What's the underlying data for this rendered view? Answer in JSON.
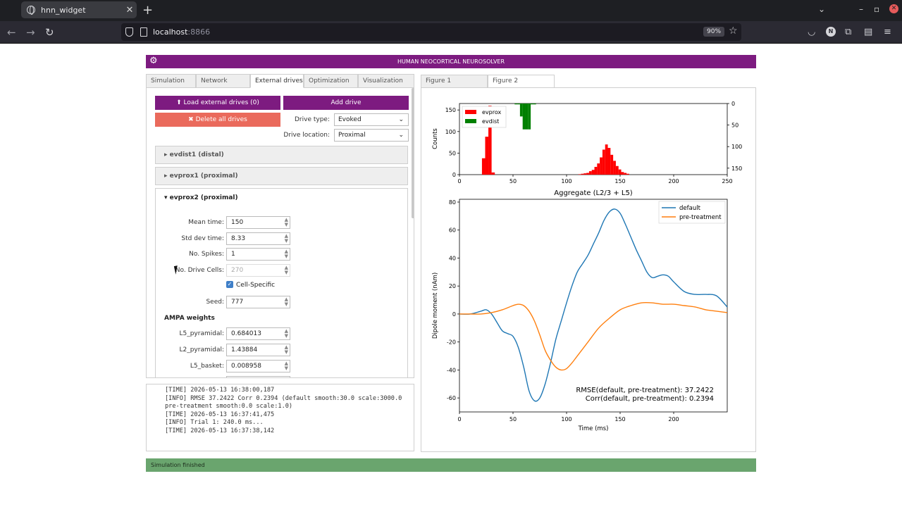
{
  "browser": {
    "tab_title": "hnn_widget",
    "url_host": "localhost",
    "url_port": ":8866",
    "zoom": "90%",
    "avatar_letter": "N"
  },
  "app": {
    "title": "HUMAN NEOCORTICAL NEUROSOLVER",
    "left_tabs": [
      "Simulation",
      "Network",
      "External drives",
      "Optimization",
      "Visualization"
    ],
    "active_left_tab": "External drives",
    "right_tabs": [
      "Figure 1",
      "Figure 2"
    ],
    "active_right_tab": "Figure 2",
    "status": "Simulation finished"
  },
  "drives": {
    "load_button": "Load external drives (0)",
    "add_button": "Add drive",
    "delete_button": "Delete all drives",
    "drive_type_label": "Drive type:",
    "drive_type_value": "Evoked",
    "drive_location_label": "Drive location:",
    "drive_location_value": "Proximal",
    "accordion": [
      "evdist1 (distal)",
      "evprox1 (proximal)",
      "evprox2 (proximal)"
    ],
    "fields": [
      {
        "label": "Mean time:",
        "value": "150"
      },
      {
        "label": "Std dev time:",
        "value": "8.33"
      },
      {
        "label": "No. Spikes:",
        "value": "1"
      },
      {
        "label": "No. Drive Cells:",
        "value": "270"
      }
    ],
    "cell_specific_label": "Cell-Specific",
    "seed_label": "Seed:",
    "seed_value": "777",
    "ampa_title": "AMPA weights",
    "ampa": [
      {
        "label": "L5_pyramidal:",
        "value": "0.684013"
      },
      {
        "label": "L2_pyramidal:",
        "value": "1.43884"
      },
      {
        "label": "L5_basket:",
        "value": "0.008958"
      }
    ]
  },
  "log_lines": [
    "[TIME] 2026-05-13 16:38:00,187",
    "[INFO] RMSE 37.2422 Corr 0.2394 (default smooth:30.0 scale:3000.0",
    "pre-treatment smooth:0.0 scale:1.0)",
    "",
    "[TIME] 2026-05-13 16:37:41,475",
    "[INFO] Trial 1: 240.0 ms...",
    "",
    "[TIME] 2026-05-13 16:37:38,142"
  ],
  "chart_data": [
    {
      "type": "bar",
      "title": "",
      "xlabel": "",
      "ylabel": "Counts",
      "xlim": [
        0,
        250
      ],
      "ylim": [
        0,
        165
      ],
      "ylim_right": [
        0,
        165
      ],
      "right_axis_inverted": true,
      "xticks": [
        0,
        50,
        100,
        150,
        200,
        250
      ],
      "yticks": [
        0,
        50,
        100,
        150
      ],
      "yticks_right": [
        0,
        50,
        100,
        150
      ],
      "legend": [
        "evprox",
        "evdist"
      ],
      "legend_position": "top-left",
      "colors": {
        "evprox": "#ff0000",
        "evdist": "#008000"
      },
      "series": [
        {
          "name": "evprox",
          "axis": "left",
          "bin_width": 3,
          "bins": [
            [
              21,
              38
            ],
            [
              24,
              88
            ],
            [
              27,
              160
            ],
            [
              30,
              5
            ]
          ]
        },
        {
          "name": "evprox",
          "axis": "left",
          "bin_width": 2.5,
          "bins": [
            [
              111,
              1
            ],
            [
              113.5,
              2
            ],
            [
              116,
              3
            ],
            [
              118.5,
              4
            ],
            [
              121,
              8
            ],
            [
              123.5,
              11
            ],
            [
              126,
              18
            ],
            [
              128.5,
              26
            ],
            [
              131,
              40
            ],
            [
              133.5,
              58
            ],
            [
              136,
              70
            ],
            [
              138.5,
              62
            ],
            [
              141,
              46
            ],
            [
              143.5,
              32
            ],
            [
              146,
              20
            ],
            [
              148.5,
              12
            ],
            [
              151,
              6
            ],
            [
              153.5,
              4
            ],
            [
              156,
              2
            ]
          ]
        },
        {
          "name": "evdist",
          "axis": "right",
          "bin_width": 2.5,
          "bins": [
            [
              51.5,
              2
            ],
            [
              54,
              2
            ],
            [
              56.5,
              30
            ],
            [
              59,
              60
            ],
            [
              61.5,
              60
            ],
            [
              64,
              60
            ],
            [
              66.5,
              2
            ],
            [
              69,
              2
            ]
          ]
        }
      ]
    },
    {
      "type": "line",
      "title": "Aggregate (L2/3 + L5)",
      "xlabel": "Time (ms)",
      "ylabel": "Dipole moment (nAm)",
      "xlim": [
        0,
        250
      ],
      "ylim": [
        -70,
        82
      ],
      "xticks": [
        0,
        50,
        100,
        150,
        200
      ],
      "yticks": [
        -60,
        -40,
        -20,
        0,
        20,
        40,
        60,
        80
      ],
      "legend_position": "top-right",
      "annotations": [
        "RMSE(default, pre-treatment): 37.2422",
        "Corr(default, pre-treatment): 0.2394"
      ],
      "series": [
        {
          "name": "default",
          "color": "#1f77b4",
          "x": [
            0,
            10,
            20,
            25,
            30,
            35,
            40,
            45,
            50,
            55,
            60,
            65,
            70,
            75,
            80,
            85,
            90,
            95,
            100,
            105,
            110,
            115,
            120,
            125,
            130,
            135,
            140,
            145,
            150,
            155,
            160,
            165,
            170,
            175,
            180,
            185,
            190,
            195,
            200,
            210,
            220,
            230,
            240,
            250
          ],
          "y": [
            0,
            0,
            2,
            3,
            0,
            -6,
            -12,
            -14,
            -16,
            -24,
            -38,
            -55,
            -62,
            -60,
            -50,
            -35,
            -18,
            -5,
            8,
            20,
            30,
            36,
            42,
            50,
            58,
            67,
            73,
            75,
            72,
            64,
            55,
            46,
            38,
            30,
            26,
            27,
            28,
            27,
            23,
            16,
            14,
            14,
            13,
            5
          ]
        },
        {
          "name": "pre-treatment",
          "color": "#ff7f0e",
          "x": [
            0,
            10,
            20,
            30,
            40,
            50,
            55,
            60,
            65,
            70,
            75,
            80,
            85,
            90,
            95,
            100,
            105,
            110,
            120,
            130,
            140,
            150,
            160,
            170,
            180,
            190,
            200,
            210,
            220,
            230,
            240,
            250
          ],
          "y": [
            0,
            0,
            0,
            1,
            3,
            6,
            7,
            6,
            2,
            -5,
            -15,
            -26,
            -33,
            -38,
            -40,
            -39,
            -35,
            -30,
            -20,
            -10,
            -3,
            3,
            6,
            8,
            8,
            7,
            7,
            6,
            5,
            3,
            2,
            1
          ]
        }
      ]
    }
  ]
}
